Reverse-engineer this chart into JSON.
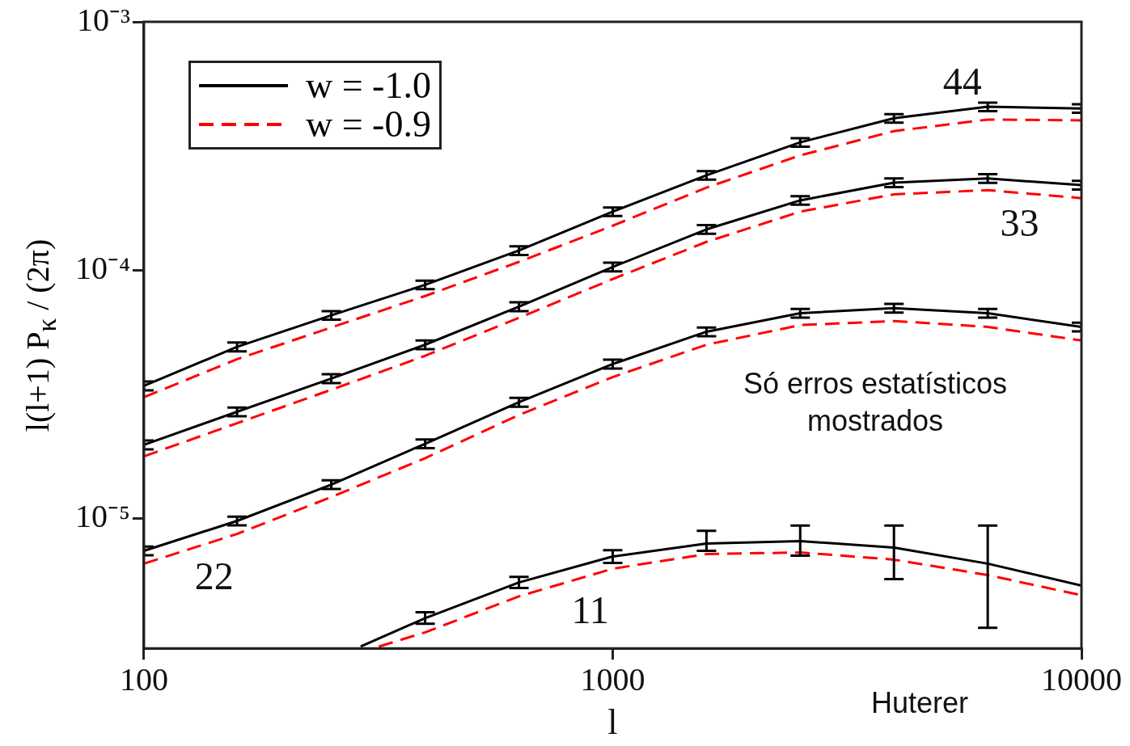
{
  "chart_data": {
    "type": "line",
    "xlabel": "l",
    "ylabel": "l(l+1) P$_{κ}$ / (2π)",
    "log": "xy",
    "xlim": [
      100,
      10000
    ],
    "xticks": [
      100,
      1000,
      10000
    ],
    "ylim": [
      3e-06,
      0.001
    ],
    "yticks": [
      {
        "value": 1e-05,
        "label": "10⁻⁵"
      },
      {
        "value": 0.0001,
        "label": "10⁻⁴"
      },
      {
        "value": 0.001,
        "label": "10⁻³"
      }
    ],
    "grid": false,
    "legend": "top left",
    "marker": "none",
    "series": [
      {
        "name": "w = -1.0",
        "color": "#000000",
        "line_style": "solid",
        "x": [
          100,
          158,
          251,
          398,
          631,
          1000,
          1585,
          2512,
          3981,
          6310,
          10000
        ],
        "values": [
          3.42e-05,
          4.91e-05,
          6.58e-05,
          8.73e-05,
          0.00012,
          0.000172,
          0.000241,
          0.000327,
          0.000409,
          0.000455,
          0.000448
        ],
        "errors": [
          1.4e-06,
          2e-06,
          2.6e-06,
          3.5e-06,
          4.8e-06,
          6.9e-06,
          9.6e-06,
          1.3e-05,
          1.6e-05,
          1.8e-05,
          1.8e-05
        ]
      },
      {
        "name": "w = -0.9",
        "color": "#ff0000",
        "line_style": "dashed",
        "x": [
          100,
          158,
          251,
          398,
          631,
          1000,
          1585,
          2512,
          3981,
          6310,
          10000
        ],
        "values": [
          3.08e-05,
          4.38e-05,
          5.88e-05,
          7.87e-05,
          0.000108,
          0.000151,
          0.000215,
          0.00029,
          0.000363,
          0.000404,
          0.000401
        ]
      },
      {
        "color": "#000000",
        "line_style": "solid",
        "x": [
          100,
          158,
          251,
          398,
          631,
          1000,
          1585,
          2512,
          3981,
          6310,
          10000
        ],
        "values": [
          1.98e-05,
          2.69e-05,
          3.66e-05,
          5.01e-05,
          7.13e-05,
          0.000103,
          0.000146,
          0.000191,
          0.000225,
          0.000234,
          0.00022
        ],
        "errors": [
          8e-07,
          1.1e-06,
          1.5e-06,
          2e-06,
          2.9e-06,
          4.1e-06,
          5.8e-06,
          7.6e-06,
          9e-06,
          9.4e-06,
          8.8e-06
        ]
      },
      {
        "color": "#ff0000",
        "line_style": "dashed",
        "x": [
          100,
          158,
          251,
          398,
          631,
          1000,
          1585,
          2512,
          3981,
          6310,
          10000
        ],
        "values": [
          1.78e-05,
          2.42e-05,
          3.3e-05,
          4.52e-05,
          6.43e-05,
          9.21e-05,
          0.00013,
          0.000172,
          0.000202,
          0.00021,
          0.000195
        ]
      },
      {
        "color": "#000000",
        "line_style": "solid",
        "x": [
          100,
          158,
          251,
          398,
          631,
          1000,
          1585,
          2512,
          3981,
          6310,
          10000
        ],
        "values": [
          7.41e-06,
          9.78e-06,
          1.37e-05,
          2e-05,
          2.94e-05,
          4.19e-05,
          5.65e-05,
          6.71e-05,
          7.03e-05,
          6.71e-05,
          5.91e-05
        ],
        "errors": [
          3e-07,
          4e-07,
          5.5e-07,
          8e-07,
          1.2e-06,
          1.7e-06,
          2.3e-06,
          2.7e-06,
          2.8e-06,
          2.7e-06,
          2.4e-06
        ]
      },
      {
        "color": "#ff0000",
        "line_style": "dashed",
        "x": [
          100,
          158,
          251,
          398,
          631,
          1000,
          1585,
          2512,
          3981,
          6310,
          10000
        ],
        "values": [
          6.58e-06,
          8.67e-06,
          1.22e-05,
          1.75e-05,
          2.61e-05,
          3.71e-05,
          5.01e-05,
          6.01e-05,
          6.24e-05,
          5.91e-05,
          5.21e-05
        ]
      },
      {
        "color": "#000000",
        "line_style": "solid",
        "x": [
          290,
          398,
          631,
          1000,
          1585,
          2512,
          3981,
          6310,
          10000
        ],
        "values": [
          3.05e-06,
          3.97e-06,
          5.53e-06,
          7.03e-06,
          7.93e-06,
          8.11e-06,
          7.64e-06,
          6.58e-06,
          5.37e-06
        ],
        "errors": [
          null,
          [
            3.77e-06,
            4.19e-06
          ],
          [
            5.25e-06,
            5.82e-06
          ],
          [
            6.62e-06,
            7.46e-06
          ],
          [
            7.41e-06,
            8.93e-06
          ],
          [
            7.08e-06,
            9.36e-06
          ],
          [
            5.7e-06,
            9.36e-06
          ],
          [
            3.63e-06,
            9.36e-06
          ],
          null
        ]
      },
      {
        "color": "#ff0000",
        "line_style": "dashed",
        "x": [
          317,
          398,
          631,
          1000,
          1585,
          2512,
          3981,
          6310,
          10000
        ],
        "values": [
          3.05e-06,
          3.48e-06,
          4.86e-06,
          6.28e-06,
          7.19e-06,
          7.3e-06,
          6.83e-06,
          5.92e-06,
          4.91e-06
        ]
      }
    ],
    "annotations": [
      "44",
      "33",
      "22",
      "11",
      "Só erros estatísticos mostrados",
      "Huterer"
    ]
  }
}
